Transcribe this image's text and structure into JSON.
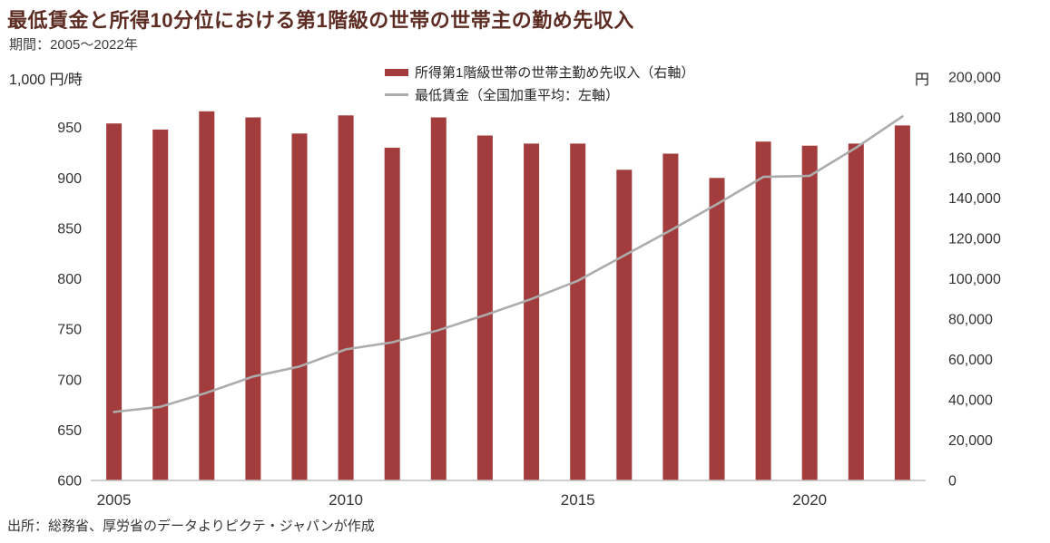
{
  "title": "最低賃金と所得10分位における第1階級の世帯の世帯主の勤め先収入",
  "subtitle": "期間：2005～2022年",
  "source": "出所：総務省、厚労省のデータよりピクテ・ジャパンが作成",
  "colors": {
    "bar": "#a33c3c",
    "line": "#acacac",
    "title_text": "#5c2b22",
    "axis_text": "#333333",
    "axis_line": "#bfbfbf"
  },
  "chart_data": {
    "type": "bar",
    "subtype": "bar+line combo, dual axis",
    "years": [
      2005,
      2006,
      2007,
      2008,
      2009,
      2010,
      2011,
      2012,
      2013,
      2014,
      2015,
      2016,
      2017,
      2018,
      2019,
      2020,
      2021,
      2022
    ],
    "series": [
      {
        "name": "所得第1階級世帯の世帯主勤め先収入（右軸）",
        "type": "bar",
        "axis": "right",
        "color": "#a33c3c",
        "values": [
          177000,
          174000,
          183000,
          180000,
          172000,
          181000,
          165000,
          180000,
          171000,
          167000,
          167000,
          154000,
          162000,
          150000,
          168000,
          166000,
          167000,
          176000
        ]
      },
      {
        "name": "最低賃金（全国加重平均：左軸）",
        "type": "line",
        "axis": "left",
        "color": "#acacac",
        "values": [
          668,
          673,
          687,
          703,
          713,
          730,
          737,
          749,
          764,
          780,
          798,
          823,
          848,
          874,
          901,
          902,
          930,
          961
        ]
      }
    ],
    "left_axis": {
      "header": "1,000 円/時",
      "min": 600,
      "max": 1000,
      "ticks": [
        950,
        900,
        850,
        800,
        750,
        700,
        650,
        600
      ]
    },
    "right_axis": {
      "unit": "円",
      "min": 0,
      "max": 200000,
      "ticks": [
        200000,
        180000,
        160000,
        140000,
        120000,
        100000,
        80000,
        60000,
        40000,
        20000,
        0
      ]
    },
    "x_axis": {
      "labeled_years": [
        2005,
        2010,
        2015,
        2020
      ]
    },
    "legend_position": "top-center",
    "grid": false
  }
}
